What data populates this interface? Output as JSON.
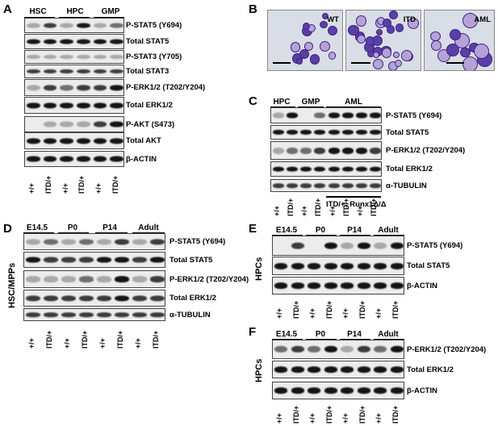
{
  "panels": {
    "A": {
      "letter": "A",
      "groups": [
        "HSC",
        "HPC",
        "GMP"
      ],
      "rows": [
        "P-STAT5 (Y694)",
        "Total STAT5",
        "P-STAT3 (Y705)",
        "Total STAT3",
        "P-ERK1/2 (T202/Y204)",
        "Total ERK1/2",
        "P-AKT (S473)",
        "Total AKT",
        "β-ACTIN"
      ],
      "genotypes": [
        "+/+",
        "ITD/+",
        "+/+",
        "ITD/+",
        "+/+",
        "ITD/+"
      ]
    },
    "B": {
      "letter": "B",
      "labels": [
        "WT",
        "ITD",
        "AML"
      ]
    },
    "C": {
      "letter": "C",
      "groups": [
        "HPC",
        "GMP",
        "AML"
      ],
      "rows": [
        "P-STAT5 (Y694)",
        "Total STAT5",
        "P-ERK1/2 (T202/Y204)",
        "Total ERK1/2",
        "α-TUBULIN"
      ],
      "genotypes": [
        "+/+",
        "ITD/+",
        "+/+",
        "ITD/+"
      ],
      "bracket": "ITD/+; Runx1Δ/Δ"
    },
    "D": {
      "letter": "D",
      "side": "HSC/MPPs",
      "groups": [
        "E14.5",
        "P0",
        "P14",
        "Adult"
      ],
      "rows": [
        "P-STAT5 (Y694)",
        "Total STAT5",
        "P-ERK1/2 (T202/Y204)",
        "Total ERK1/2",
        "α-TUBULIN"
      ],
      "genotypes": [
        "+/+",
        "ITD/+",
        "+/+",
        "ITD/+",
        "+/+",
        "ITD/+",
        "+/+",
        "ITD/+"
      ]
    },
    "E": {
      "letter": "E",
      "side": "HPCs",
      "groups": [
        "E14.5",
        "P0",
        "P14",
        "Adult"
      ],
      "rows": [
        "P-STAT5 (Y694)",
        "Total STAT5",
        "β-ACTIN"
      ],
      "genotypes": [
        "+/+",
        "ITD/+",
        "+/+",
        "ITD/+",
        "+/+",
        "ITD/+",
        "+/+",
        "ITD/+"
      ]
    },
    "F": {
      "letter": "F",
      "side": "HPCs",
      "groups": [
        "E14.5",
        "P0",
        "P14",
        "Adult"
      ],
      "rows": [
        "P-ERK1/2 (T202/Y204)",
        "Total ERK1/2",
        "β-ACTIN"
      ],
      "genotypes": [
        "+/+",
        "ITD/+",
        "+/+",
        "ITD/+",
        "+/+",
        "ITD/+",
        "+/+",
        "ITD/+"
      ]
    }
  }
}
